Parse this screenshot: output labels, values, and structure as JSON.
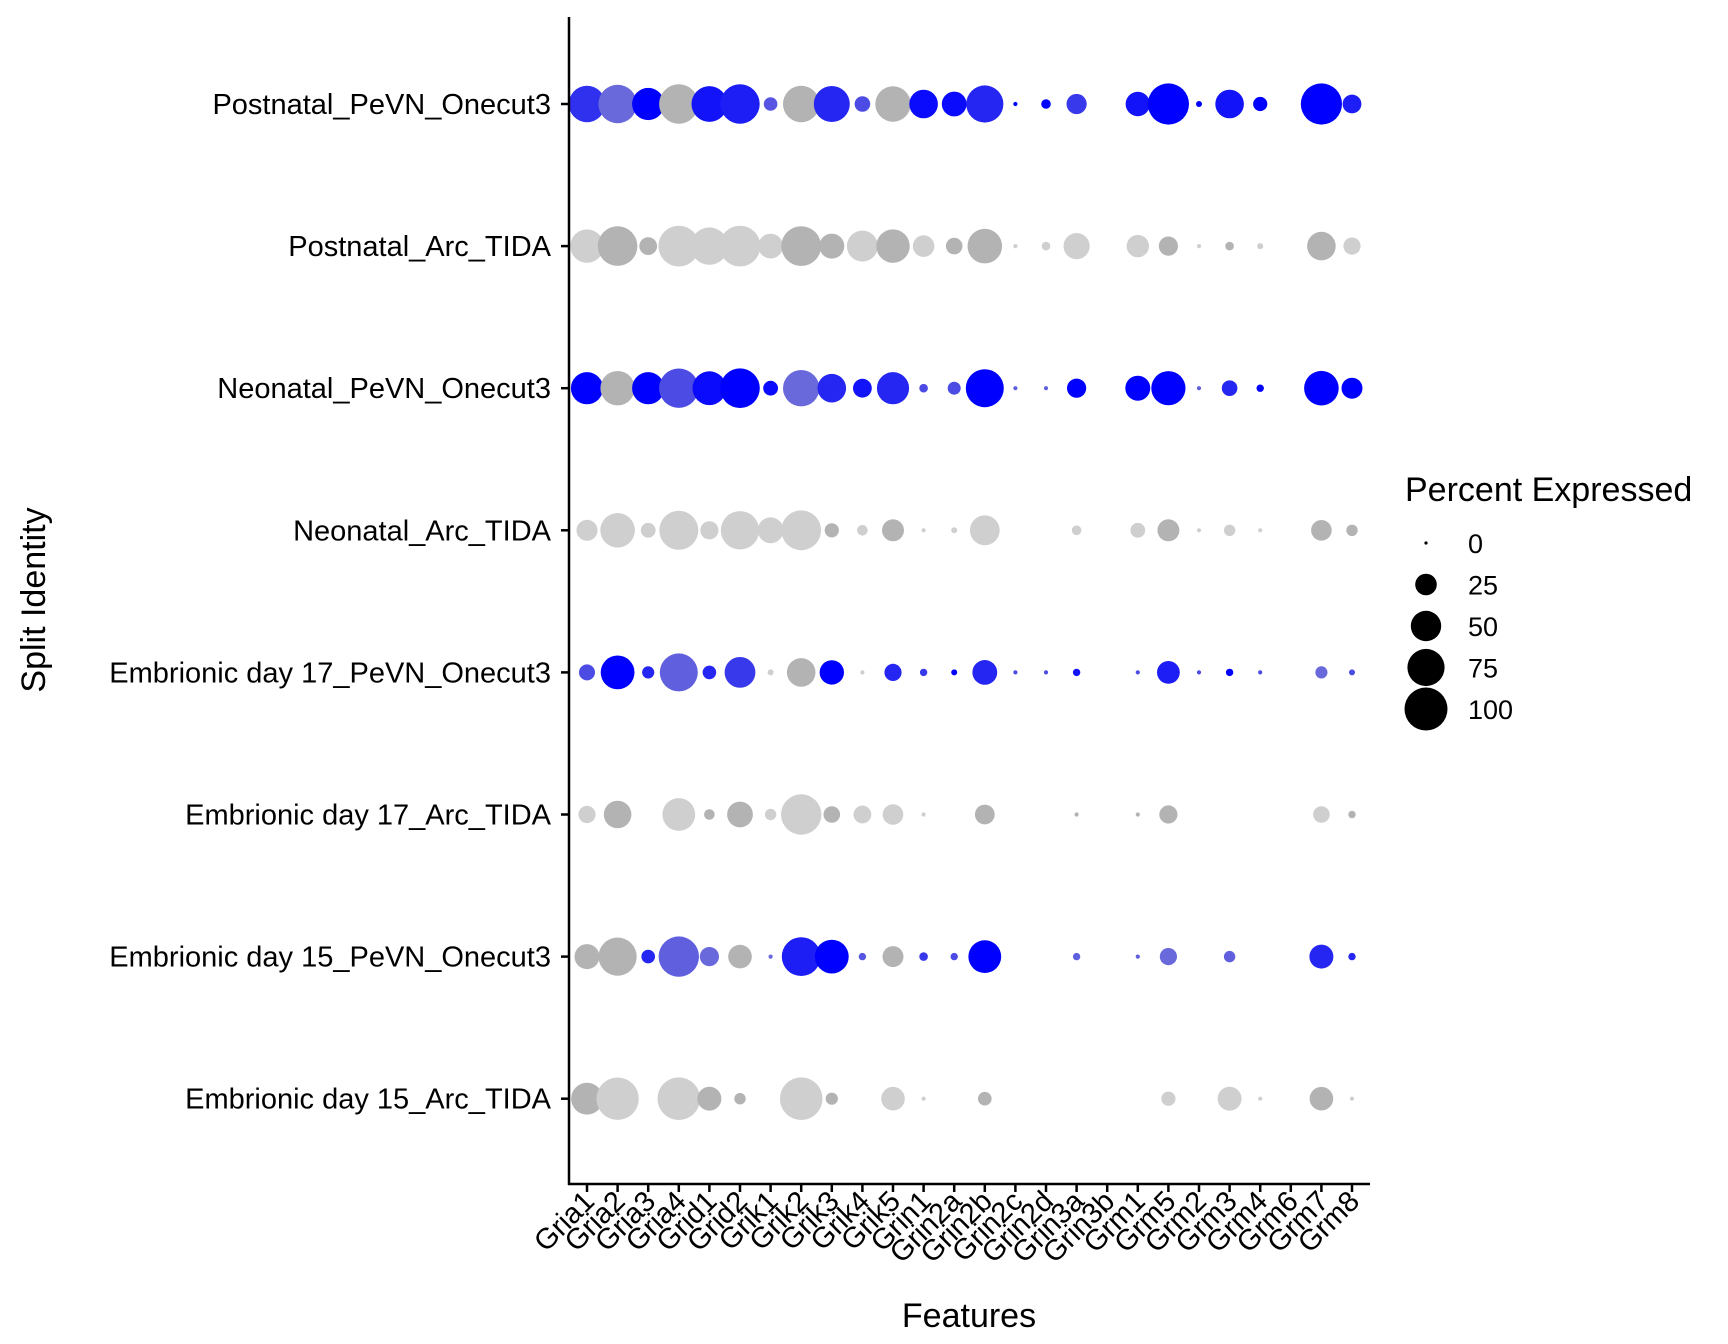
{
  "chart_data": {
    "type": "dot",
    "xlabel": "Features",
    "ylabel": "Split Identity",
    "features": [
      "Gria1",
      "Gria2",
      "Gria3",
      "Gria4",
      "Grid1",
      "Grid2",
      "Grik1",
      "Grik2",
      "Grik3",
      "Grik4",
      "Grik5",
      "Grin1",
      "Grin2a",
      "Grin2b",
      "Grin2c",
      "Grin2d",
      "Grin3a",
      "Grin3b",
      "Grm1",
      "Grm5",
      "Grm2",
      "Grm3",
      "Grm4",
      "Grm6",
      "Grm7",
      "Grm8"
    ],
    "groups": [
      {
        "name": "Postnatal_PeVN_Onecut3",
        "pct": [
          72,
          80,
          56,
          84,
          69,
          84,
          10,
          72,
          70,
          13,
          68,
          44,
          33,
          75,
          1,
          5,
          22,
          0,
          32,
          92,
          2,
          44,
          11,
          0,
          92,
          19
        ],
        "expr": [
          0.75,
          0.45,
          1.0,
          0.0,
          0.9,
          0.85,
          0.55,
          0.0,
          0.8,
          0.6,
          0.0,
          0.95,
          0.95,
          0.8,
          1.0,
          1.0,
          0.7,
          0,
          0.9,
          1.0,
          1.0,
          0.9,
          1.0,
          0,
          1.0,
          0.85
        ]
      },
      {
        "name": "Postnatal_Arc_TIDA",
        "pct": [
          60,
          85,
          17,
          90,
          76,
          90,
          33,
          86,
          34,
          52,
          60,
          25,
          15,
          65,
          1,
          4,
          37,
          0,
          27,
          20,
          1,
          4,
          2,
          0,
          44,
          16
        ],
        "expr": [
          0.15,
          0.0,
          0.0,
          0.1,
          0.2,
          0.2,
          0.2,
          0.0,
          0.0,
          0.2,
          0.0,
          0.2,
          0.0,
          0.0,
          0.2,
          0.2,
          0.2,
          0,
          0.2,
          0.0,
          0.2,
          0.0,
          0.2,
          0,
          0.0,
          0.2
        ]
      },
      {
        "name": "Neonatal_PeVN_Onecut3",
        "pct": [
          56,
          64,
          56,
          84,
          62,
          85,
          12,
          72,
          44,
          19,
          56,
          4,
          9,
          78,
          1,
          1,
          20,
          0,
          34,
          63,
          1,
          13,
          3,
          0,
          65,
          24
        ],
        "expr": [
          1.0,
          0.0,
          1.0,
          0.6,
          0.95,
          1.0,
          0.95,
          0.45,
          0.8,
          0.9,
          0.8,
          0.6,
          0.6,
          1.0,
          0.5,
          0.5,
          1.0,
          0,
          1.0,
          1.0,
          0.5,
          0.8,
          1.0,
          0,
          1.0,
          1.0
        ]
      },
      {
        "name": "Neonatal_Arc_TIDA",
        "pct": [
          24,
          65,
          12,
          82,
          18,
          80,
          36,
          86,
          11,
          6,
          26,
          1,
          2,
          48,
          0,
          0,
          5,
          0,
          12,
          26,
          1,
          7,
          1,
          0,
          23,
          7
        ],
        "expr": [
          0.2,
          0.2,
          0.2,
          0.2,
          0.1,
          0.2,
          0.2,
          0.2,
          0.0,
          0.2,
          0.0,
          0.2,
          0.2,
          0.2,
          0.2,
          0.2,
          0.1,
          0,
          0.2,
          0.0,
          0.2,
          0.2,
          0.2,
          0,
          0.0,
          0.0
        ]
      },
      {
        "name": "Embrionic day 17_PeVN_Onecut3",
        "pct": [
          14,
          62,
          8,
          78,
          10,
          51,
          2,
          44,
          32,
          1,
          16,
          3,
          2,
          33,
          1,
          1,
          3,
          0,
          1,
          28,
          1,
          3,
          1,
          0,
          8,
          2
        ],
        "expr": [
          0.6,
          1.0,
          0.8,
          0.5,
          0.8,
          0.7,
          0.2,
          0.0,
          1.0,
          0.2,
          0.8,
          0.7,
          1.0,
          0.8,
          0.6,
          0.6,
          0.9,
          0,
          0.6,
          0.85,
          0.6,
          1.0,
          0.6,
          0,
          0.45,
          0.6
        ]
      },
      {
        "name": "Embrionic day 17_Arc_TIDA",
        "pct": [
          16,
          41,
          0,
          58,
          6,
          36,
          7,
          88,
          15,
          17,
          23,
          1,
          0,
          21,
          0,
          0,
          1,
          0,
          1,
          18,
          0,
          0,
          0,
          0,
          15,
          3
        ],
        "expr": [
          0.2,
          0.0,
          0.2,
          0.1,
          0.0,
          0.0,
          0.2,
          0.2,
          0.0,
          0.2,
          0.2,
          0.2,
          0.2,
          0.0,
          0.2,
          0.2,
          0.0,
          0,
          0.0,
          0.0,
          0.2,
          0.2,
          0.2,
          0,
          0.2,
          0.0
        ]
      },
      {
        "name": "Embrionic day 15_PeVN_Onecut3",
        "pct": [
          34,
          79,
          10,
          88,
          20,
          30,
          1,
          81,
          62,
          3,
          24,
          4,
          3,
          58,
          0,
          0,
          3,
          0,
          1,
          16,
          0,
          7,
          0,
          0,
          31,
          3
        ],
        "expr": [
          0.0,
          0.0,
          0.8,
          0.5,
          0.45,
          0.0,
          0.45,
          0.85,
          1.0,
          0.55,
          0.0,
          0.7,
          0.6,
          1.0,
          0.6,
          0.6,
          0.5,
          0,
          0.5,
          0.45,
          1.0,
          0.5,
          0.55,
          0,
          0.8,
          0.8
        ]
      },
      {
        "name": "Embrionic day 15_Arc_TIDA",
        "pct": [
          55,
          97,
          0,
          98,
          31,
          7,
          0,
          98,
          8,
          0,
          30,
          1,
          0,
          10,
          0,
          0,
          0,
          0,
          0,
          11,
          0,
          31,
          1,
          0,
          30,
          1
        ],
        "expr": [
          0.0,
          0.2,
          0.2,
          0.2,
          0.0,
          0.0,
          0.2,
          0.2,
          0.0,
          0.2,
          0.2,
          0.2,
          0.2,
          0.0,
          0.2,
          0.2,
          0.2,
          0,
          0.2,
          0.2,
          0.2,
          0.2,
          0.2,
          0,
          0.0,
          0.2
        ]
      }
    ],
    "color_low": "#bfbfbf",
    "color_high": "#0000ff",
    "legend": {
      "title": "Percent Expressed",
      "position": "right",
      "values": [
        0,
        25,
        50,
        75,
        100
      ],
      "labels": [
        "0",
        "25",
        "50",
        "75",
        "100"
      ]
    }
  }
}
